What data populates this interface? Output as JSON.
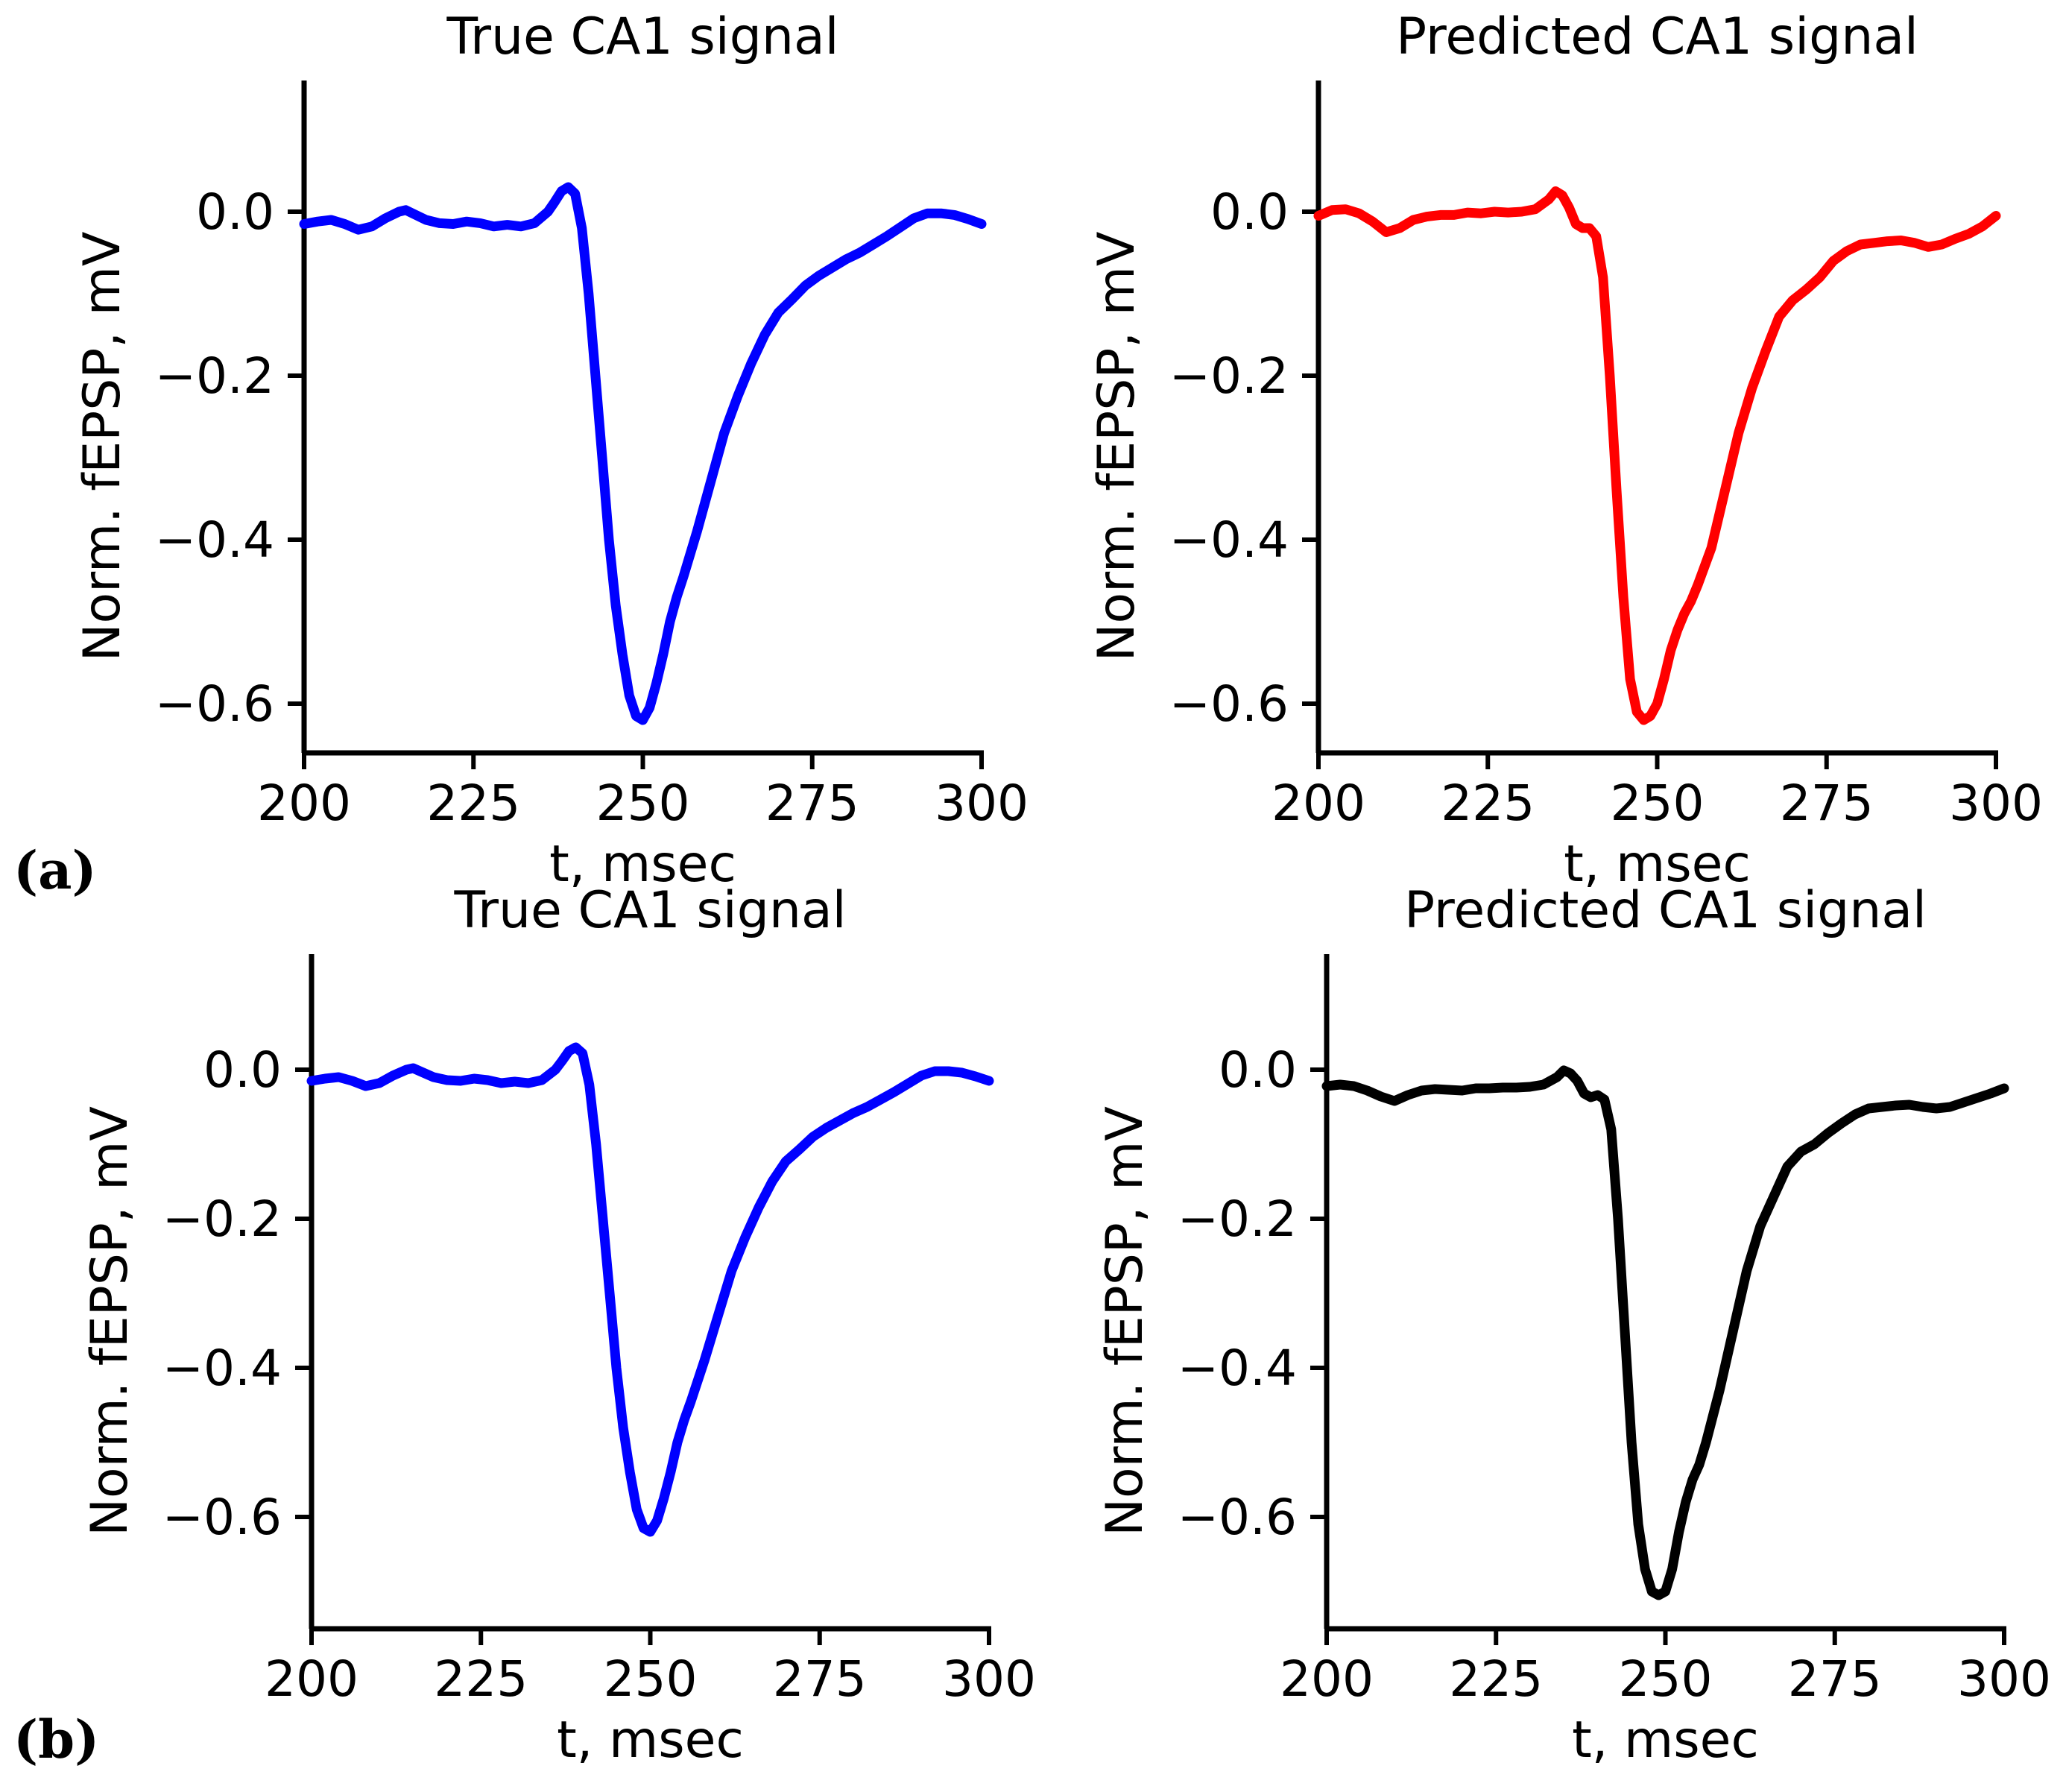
{
  "figure": {
    "panel_labels": [
      "(a)",
      "(b)"
    ]
  },
  "chart_data": [
    {
      "type": "line",
      "panel": "(a)",
      "title": "True CA1 signal",
      "xlabel": "t, msec",
      "ylabel": "Norm. fEPSP, mV",
      "xlim": [
        200,
        300
      ],
      "ylim": [
        -0.66,
        0.16
      ],
      "xticks": [
        200,
        225,
        250,
        275,
        300
      ],
      "xtick_labels": [
        "200",
        "225",
        "250",
        "275",
        "300"
      ],
      "yticks": [
        0.0,
        -0.2,
        -0.4,
        -0.6
      ],
      "ytick_labels": [
        "0.0",
        "−0.2",
        "−0.4",
        "−0.6"
      ],
      "series": [
        {
          "name": "True CA1 signal",
          "color": "#0000ff",
          "x": [
            200,
            202,
            204,
            206,
            208,
            210,
            212,
            214,
            215,
            216,
            218,
            220,
            222,
            224,
            226,
            228,
            230,
            232,
            234,
            236,
            237,
            238,
            239,
            240,
            241,
            242,
            243,
            244,
            245,
            246,
            247,
            248,
            249,
            250,
            251,
            252,
            253,
            254,
            255,
            256,
            258,
            260,
            262,
            264,
            266,
            268,
            270,
            272,
            274,
            276,
            278,
            280,
            282,
            284,
            286,
            288,
            290,
            292,
            294,
            296,
            298,
            300
          ],
          "y": [
            -0.015,
            -0.012,
            -0.01,
            -0.015,
            -0.022,
            -0.018,
            -0.008,
            0.0,
            0.002,
            -0.002,
            -0.01,
            -0.014,
            -0.015,
            -0.012,
            -0.014,
            -0.018,
            -0.016,
            -0.018,
            -0.014,
            0.0,
            0.012,
            0.025,
            0.03,
            0.022,
            -0.02,
            -0.1,
            -0.2,
            -0.3,
            -0.4,
            -0.48,
            -0.54,
            -0.59,
            -0.615,
            -0.62,
            -0.605,
            -0.575,
            -0.54,
            -0.5,
            -0.47,
            -0.445,
            -0.39,
            -0.33,
            -0.27,
            -0.225,
            -0.185,
            -0.15,
            -0.123,
            -0.107,
            -0.09,
            -0.078,
            -0.068,
            -0.058,
            -0.05,
            -0.04,
            -0.03,
            -0.019,
            -0.008,
            -0.002,
            -0.002,
            -0.004,
            -0.009,
            -0.015
          ]
        }
      ]
    },
    {
      "type": "line",
      "panel": "(a)",
      "title": "Predicted CA1 signal",
      "xlabel": "t, msec",
      "ylabel": "Norm. fEPSP, mV",
      "xlim": [
        200,
        300
      ],
      "ylim": [
        -0.66,
        0.16
      ],
      "xticks": [
        200,
        225,
        250,
        275,
        300
      ],
      "xtick_labels": [
        "200",
        "225",
        "250",
        "275",
        "300"
      ],
      "yticks": [
        0.0,
        -0.2,
        -0.4,
        -0.6
      ],
      "ytick_labels": [
        "0.0",
        "−0.2",
        "−0.4",
        "−0.6"
      ],
      "series": [
        {
          "name": "Predicted CA1 signal",
          "color": "#ff0000",
          "x": [
            200,
            202,
            204,
            206,
            208,
            210,
            212,
            214,
            216,
            218,
            220,
            222,
            224,
            226,
            228,
            230,
            232,
            234,
            235,
            236,
            237,
            238,
            239,
            240,
            241,
            242,
            243,
            244,
            245,
            246,
            247,
            248,
            249,
            250,
            251,
            252,
            253,
            254,
            255,
            256,
            258,
            260,
            262,
            264,
            266,
            268,
            270,
            272,
            274,
            276,
            278,
            280,
            282,
            284,
            286,
            288,
            290,
            292,
            294,
            296,
            298,
            300
          ],
          "y": [
            -0.005,
            0.002,
            0.003,
            -0.002,
            -0.012,
            -0.025,
            -0.02,
            -0.01,
            -0.006,
            -0.004,
            -0.004,
            -0.001,
            -0.002,
            0.0,
            -0.001,
            0.0,
            0.003,
            0.015,
            0.025,
            0.02,
            0.005,
            -0.015,
            -0.02,
            -0.02,
            -0.03,
            -0.08,
            -0.2,
            -0.34,
            -0.47,
            -0.57,
            -0.61,
            -0.62,
            -0.615,
            -0.6,
            -0.57,
            -0.535,
            -0.51,
            -0.49,
            -0.475,
            -0.455,
            -0.41,
            -0.34,
            -0.27,
            -0.215,
            -0.17,
            -0.128,
            -0.108,
            -0.095,
            -0.08,
            -0.06,
            -0.048,
            -0.04,
            -0.038,
            -0.036,
            -0.035,
            -0.038,
            -0.043,
            -0.04,
            -0.033,
            -0.027,
            -0.018,
            -0.005
          ]
        }
      ]
    },
    {
      "type": "line",
      "panel": "(b)",
      "title": "True CA1 signal",
      "xlabel": "t, msec",
      "ylabel": "Norm. fEPSP, mV",
      "xlim": [
        200,
        300
      ],
      "ylim": [
        -0.75,
        0.155
      ],
      "xticks": [
        200,
        225,
        250,
        275,
        300
      ],
      "xtick_labels": [
        "200",
        "225",
        "250",
        "275",
        "300"
      ],
      "yticks": [
        0.0,
        -0.2,
        -0.4,
        -0.6
      ],
      "ytick_labels": [
        "0.0",
        "−0.2",
        "−0.4",
        "−0.6"
      ],
      "series": [
        {
          "name": "True CA1 signal",
          "color": "#0000ff",
          "x": [
            200,
            202,
            204,
            206,
            208,
            210,
            212,
            214,
            215,
            216,
            218,
            220,
            222,
            224,
            226,
            228,
            230,
            232,
            234,
            236,
            237,
            238,
            239,
            240,
            241,
            242,
            243,
            244,
            245,
            246,
            247,
            248,
            249,
            250,
            251,
            252,
            253,
            254,
            255,
            256,
            258,
            260,
            262,
            264,
            266,
            268,
            270,
            272,
            274,
            276,
            278,
            280,
            282,
            284,
            286,
            288,
            290,
            292,
            294,
            296,
            298,
            300
          ],
          "y": [
            -0.015,
            -0.012,
            -0.01,
            -0.015,
            -0.022,
            -0.018,
            -0.008,
            0.0,
            0.002,
            -0.002,
            -0.01,
            -0.014,
            -0.015,
            -0.012,
            -0.014,
            -0.018,
            -0.016,
            -0.018,
            -0.014,
            0.0,
            0.012,
            0.025,
            0.03,
            0.022,
            -0.02,
            -0.1,
            -0.2,
            -0.3,
            -0.4,
            -0.48,
            -0.54,
            -0.59,
            -0.615,
            -0.62,
            -0.605,
            -0.575,
            -0.54,
            -0.5,
            -0.47,
            -0.445,
            -0.39,
            -0.33,
            -0.27,
            -0.225,
            -0.185,
            -0.15,
            -0.123,
            -0.107,
            -0.09,
            -0.078,
            -0.068,
            -0.058,
            -0.05,
            -0.04,
            -0.03,
            -0.019,
            -0.008,
            -0.002,
            -0.002,
            -0.004,
            -0.009,
            -0.015
          ]
        }
      ]
    },
    {
      "type": "line",
      "panel": "(b)",
      "title": "Predicted CA1 signal",
      "xlabel": "t, msec",
      "ylabel": "Norm. fEPSP, mV",
      "xlim": [
        200,
        300
      ],
      "ylim": [
        -0.75,
        0.155
      ],
      "xticks": [
        200,
        225,
        250,
        275,
        300
      ],
      "xtick_labels": [
        "200",
        "225",
        "250",
        "275",
        "300"
      ],
      "yticks": [
        0.0,
        -0.2,
        -0.4,
        -0.6
      ],
      "ytick_labels": [
        "0.0",
        "−0.2",
        "−0.4",
        "−0.6"
      ],
      "series": [
        {
          "name": "Predicted CA1 signal",
          "color": "#000000",
          "x": [
            200,
            202,
            204,
            206,
            208,
            210,
            212,
            214,
            216,
            218,
            220,
            222,
            224,
            226,
            228,
            230,
            232,
            234,
            235,
            236,
            237,
            238,
            239,
            240,
            241,
            242,
            243,
            244,
            245,
            246,
            247,
            248,
            249,
            250,
            251,
            252,
            253,
            254,
            255,
            256,
            258,
            260,
            262,
            264,
            266,
            268,
            270,
            272,
            274,
            276,
            278,
            280,
            282,
            284,
            286,
            288,
            290,
            292,
            294,
            296,
            298,
            300
          ],
          "y": [
            -0.022,
            -0.02,
            -0.022,
            -0.028,
            -0.036,
            -0.042,
            -0.034,
            -0.028,
            -0.026,
            -0.027,
            -0.028,
            -0.025,
            -0.025,
            -0.024,
            -0.024,
            -0.023,
            -0.02,
            -0.01,
            -0.001,
            -0.005,
            -0.015,
            -0.032,
            -0.037,
            -0.034,
            -0.04,
            -0.08,
            -0.2,
            -0.35,
            -0.5,
            -0.61,
            -0.67,
            -0.7,
            -0.705,
            -0.7,
            -0.67,
            -0.62,
            -0.58,
            -0.55,
            -0.53,
            -0.5,
            -0.43,
            -0.35,
            -0.27,
            -0.21,
            -0.17,
            -0.13,
            -0.11,
            -0.1,
            -0.085,
            -0.072,
            -0.06,
            -0.052,
            -0.05,
            -0.048,
            -0.047,
            -0.05,
            -0.052,
            -0.05,
            -0.044,
            -0.038,
            -0.032,
            -0.025
          ]
        }
      ]
    }
  ]
}
